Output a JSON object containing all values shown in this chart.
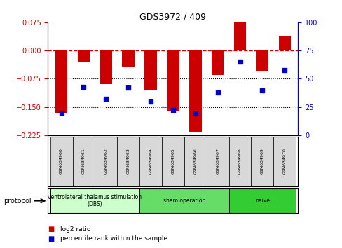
{
  "title": "GDS3972 / 409",
  "samples": [
    "GSM634960",
    "GSM634961",
    "GSM634962",
    "GSM634963",
    "GSM634964",
    "GSM634965",
    "GSM634966",
    "GSM634967",
    "GSM634968",
    "GSM634969",
    "GSM634970"
  ],
  "log2_ratio": [
    -0.165,
    -0.03,
    -0.09,
    -0.043,
    -0.105,
    -0.16,
    -0.215,
    -0.065,
    0.082,
    -0.055,
    0.04
  ],
  "percentile_rank": [
    20,
    43,
    32,
    42,
    30,
    22,
    19,
    38,
    65,
    40,
    58
  ],
  "ylim_left": [
    -0.225,
    0.075
  ],
  "ylim_right": [
    0,
    100
  ],
  "yticks_left": [
    0.075,
    0,
    -0.075,
    -0.15,
    -0.225
  ],
  "yticks_right": [
    100,
    75,
    50,
    25,
    0
  ],
  "hlines": [
    -0.075,
    -0.15
  ],
  "bar_color": "#cc0000",
  "dot_color": "#0000cc",
  "zero_line_color": "#cc0000",
  "protocol_groups": [
    {
      "label": "ventrolateral thalamus stimulation\n(DBS)",
      "start": 0,
      "end": 4,
      "color": "#ccffcc"
    },
    {
      "label": "sham operation",
      "start": 4,
      "end": 8,
      "color": "#66dd66"
    },
    {
      "label": "naive",
      "start": 8,
      "end": 11,
      "color": "#33cc33"
    }
  ],
  "legend_items": [
    {
      "label": "log2 ratio",
      "color": "#cc0000"
    },
    {
      "label": "percentile rank within the sample",
      "color": "#0000cc"
    }
  ]
}
